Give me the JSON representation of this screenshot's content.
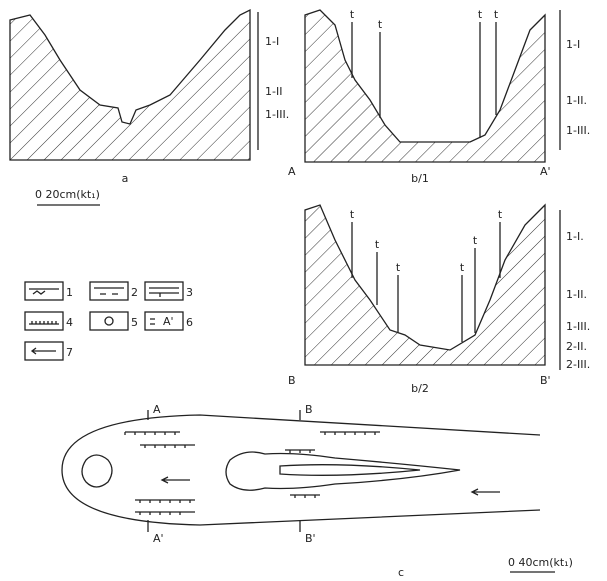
{
  "panel_a": {
    "label": "a",
    "levels": [
      "1-I",
      "1-II",
      "1-III."
    ],
    "scale": "0  20cm(kt₁)"
  },
  "panel_b1": {
    "label": "b/1",
    "left": "A",
    "right": "A'",
    "markers": [
      "t",
      "t",
      "t",
      "t"
    ],
    "levels": [
      "1-I",
      "1-II.",
      "1-III."
    ]
  },
  "panel_b2": {
    "label": "b/2",
    "left": "B",
    "right": "B'",
    "markers": [
      "t",
      "t",
      "t",
      "t",
      "t",
      "t"
    ],
    "levels": [
      "1-I.",
      "1-II.",
      "1-III.",
      "2-II.",
      "2-III."
    ]
  },
  "legend": {
    "items": [
      "1",
      "2",
      "3",
      "4",
      "5",
      "6",
      "7"
    ],
    "sample_6": "A'"
  },
  "plan": {
    "label": "c",
    "section_marks": [
      "A",
      "B",
      "A'",
      "B'"
    ],
    "scale": "0 40cm(kt₁)"
  }
}
